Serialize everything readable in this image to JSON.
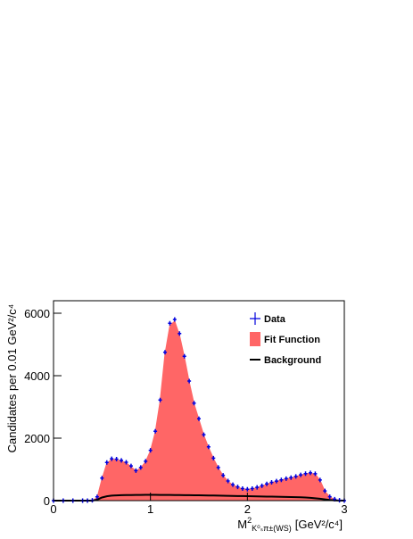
{
  "chart_data": {
    "type": "line",
    "y_label": "Candidates per 0.01 GeV²/c⁴",
    "x_label": {
      "main": "M",
      "sup": "2",
      "sub": "K⁰ₛπ±(WS)",
      "unit": "[GeV²/c⁴]"
    },
    "x": [
      0,
      0.1,
      0.2,
      0.3,
      0.35,
      0.4,
      0.45,
      0.5,
      0.55,
      0.6,
      0.65,
      0.7,
      0.75,
      0.8,
      0.85,
      0.9,
      0.95,
      1.0,
      1.05,
      1.1,
      1.15,
      1.2,
      1.25,
      1.3,
      1.35,
      1.4,
      1.45,
      1.5,
      1.55,
      1.6,
      1.65,
      1.7,
      1.75,
      1.8,
      1.85,
      1.9,
      1.95,
      2.0,
      2.05,
      2.1,
      2.15,
      2.2,
      2.25,
      2.3,
      2.35,
      2.4,
      2.45,
      2.5,
      2.55,
      2.6,
      2.65,
      2.7,
      2.75,
      2.8,
      2.85,
      2.9,
      2.95,
      3.0
    ],
    "series": [
      {
        "name": "Data",
        "color": "#0000dd",
        "marker": "cross",
        "values": [
          0,
          0,
          0,
          0,
          0,
          10,
          120,
          720,
          1220,
          1340,
          1330,
          1290,
          1230,
          1110,
          960,
          1060,
          1260,
          1610,
          2220,
          3220,
          4750,
          5680,
          5800,
          5350,
          4620,
          3830,
          3120,
          2620,
          2110,
          1720,
          1360,
          1060,
          810,
          630,
          510,
          440,
          385,
          365,
          385,
          425,
          475,
          535,
          585,
          625,
          665,
          705,
          735,
          775,
          825,
          865,
          890,
          860,
          660,
          310,
          125,
          45,
          12,
          0
        ]
      },
      {
        "name": "Fit Function",
        "color": "#ff6666",
        "fill": true,
        "values": [
          0,
          0,
          0,
          0,
          0,
          0,
          100,
          700,
          1200,
          1320,
          1310,
          1270,
          1210,
          1090,
          950,
          1050,
          1250,
          1600,
          2200,
          3200,
          4700,
          5600,
          5750,
          5300,
          4600,
          3800,
          3100,
          2600,
          2100,
          1700,
          1350,
          1050,
          800,
          620,
          500,
          430,
          380,
          360,
          380,
          420,
          470,
          530,
          580,
          620,
          660,
          700,
          730,
          770,
          820,
          860,
          880,
          850,
          650,
          300,
          120,
          40,
          10,
          0
        ]
      },
      {
        "name": "Background",
        "color": "#000000",
        "values": [
          0,
          0,
          0,
          0,
          0,
          0,
          30,
          100,
          140,
          160,
          168,
          175,
          178,
          180,
          182,
          183,
          184,
          184,
          184,
          183,
          182,
          181,
          180,
          178,
          176,
          174,
          172,
          170,
          168,
          166,
          163,
          160,
          157,
          154,
          151,
          148,
          145,
          142,
          139,
          136,
          133,
          130,
          127,
          124,
          121,
          118,
          115,
          112,
          108,
          100,
          90,
          75,
          60,
          40,
          20,
          8,
          2,
          0
        ]
      }
    ],
    "xlim": [
      0,
      3
    ],
    "ylim": [
      0,
      6400
    ],
    "xticks": [
      0,
      1,
      2,
      3
    ],
    "yticks": [
      0,
      2000,
      4000,
      6000
    ],
    "legend": "top-right"
  }
}
